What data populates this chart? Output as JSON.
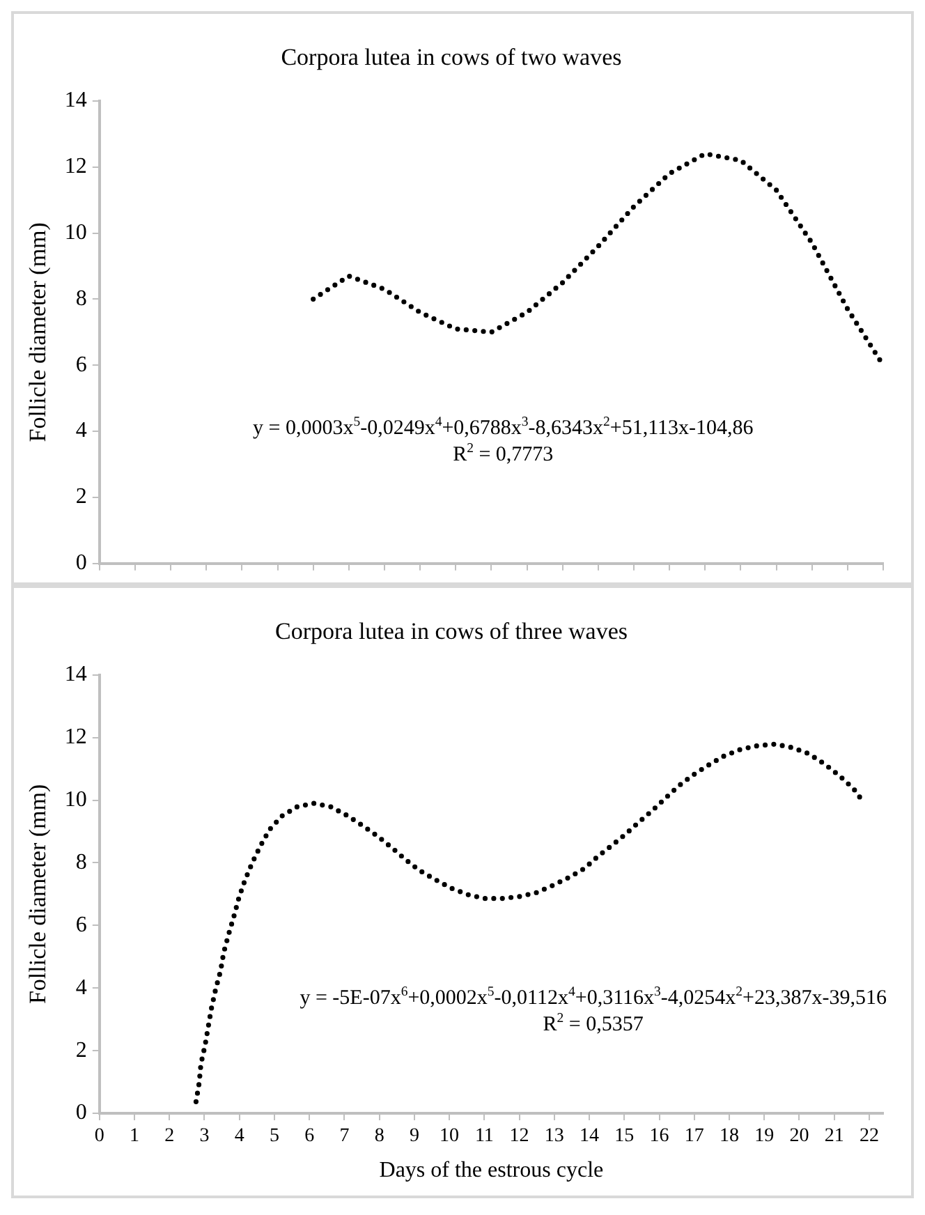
{
  "chart_data": [
    {
      "type": "line",
      "title": "Corpora lutea in cows of two waves",
      "ylabel": "Follicle diameter (mm)",
      "categories": [
        null,
        null,
        null,
        null,
        null,
        null,
        null,
        null,
        null,
        null,
        null,
        null,
        null,
        null,
        null,
        null,
        null,
        null,
        null,
        null,
        null,
        null,
        null
      ],
      "ylim": [
        0,
        14
      ],
      "yticks": [
        0,
        2,
        4,
        6,
        8,
        10,
        12,
        14
      ],
      "tick_labels": "y",
      "grid": false,
      "legend": false,
      "marker": "none",
      "line_style": "dotted",
      "annotations": [
        "y = 0,0003x$^{5}$-0,0249x$^{4}$+0,6788x$^{3}$-8,6343x$^{2}$+51,113x-104,86",
        "R$^{2}$ = 0,7773"
      ],
      "series": [
        {
          "color": "#000000",
          "values": [
            null,
            null,
            null,
            null,
            null,
            null,
            8.0,
            8.7,
            8.3,
            7.6,
            7.1,
            7.0,
            7.6,
            8.5,
            9.6,
            10.8,
            11.8,
            12.4,
            12.2,
            11.3,
            9.7,
            7.7,
            6.0
          ]
        }
      ]
    },
    {
      "type": "line",
      "title": "Corpora lutea in cows of three waves",
      "xlabel": "Days of the estrous cycle",
      "ylabel": "Follicle diameter (mm)",
      "xlim": [
        0,
        22.4
      ],
      "xticks": [
        0,
        1,
        2,
        3,
        4,
        5,
        6,
        7,
        8,
        9,
        10,
        11,
        12,
        13,
        14,
        15,
        16,
        17,
        18,
        19,
        20,
        21,
        22
      ],
      "ylim": [
        0,
        14
      ],
      "yticks": [
        0,
        2,
        4,
        6,
        8,
        10,
        12,
        14
      ],
      "grid": false,
      "legend": false,
      "marker": "none",
      "line_style": "dotted",
      "annotations": [
        "y = -5E-07x$^{6}$+0,0002x$^{5}$-0,0112x$^{4}$+0,3116x$^{3}$-4,0254x$^{2}$+23,387x-39,516",
        "R$^{2}$ = 0,5357"
      ],
      "series": [
        {
          "color": "#000000",
          "x": [
            2.76,
            2.85,
            2.9,
            3.02,
            3.11,
            3.2,
            3.32,
            3.46,
            3.55,
            3.69,
            3.85,
            3.99,
            4.16,
            4.37,
            4.6,
            4.86,
            5.21,
            5.65,
            6.12,
            6.61,
            7.08,
            7.53,
            7.95,
            8.36,
            8.74,
            9.14,
            9.62,
            10.05,
            10.54,
            11.01,
            11.5,
            11.99,
            12.47,
            12.94,
            13.43,
            13.86,
            14.25,
            14.65,
            15.03,
            15.44,
            15.82,
            16.19,
            16.57,
            16.96,
            17.39,
            17.83,
            18.32,
            18.81,
            19.31,
            19.8,
            20.28,
            20.73,
            21.15,
            21.55,
            21.82
          ],
          "values": [
            0.37,
            0.97,
            1.58,
            2.18,
            2.77,
            3.35,
            3.96,
            4.54,
            5.13,
            5.71,
            6.32,
            6.9,
            7.45,
            8.01,
            8.54,
            9.06,
            9.49,
            9.79,
            9.9,
            9.79,
            9.51,
            9.18,
            8.85,
            8.48,
            8.11,
            7.76,
            7.45,
            7.19,
            6.98,
            6.86,
            6.86,
            6.92,
            7.04,
            7.27,
            7.54,
            7.82,
            8.21,
            8.56,
            8.91,
            9.32,
            9.69,
            10.08,
            10.47,
            10.8,
            11.11,
            11.4,
            11.62,
            11.74,
            11.79,
            11.68,
            11.48,
            11.15,
            10.78,
            10.37,
            9.96
          ]
        }
      ]
    }
  ]
}
